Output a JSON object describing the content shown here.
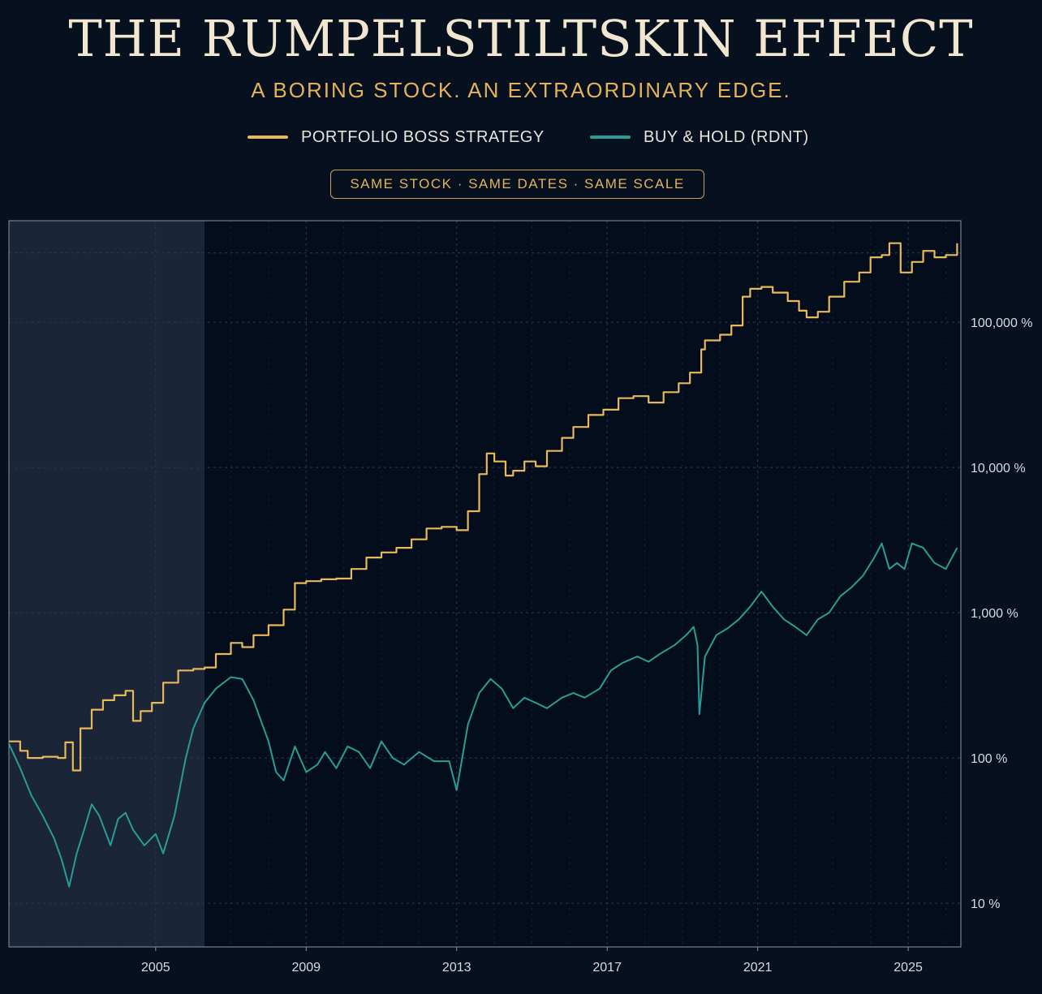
{
  "header": {
    "title": "THE RUMPELSTILTSKIN EFFECT",
    "subtitle": "A BORING STOCK. AN EXTRAORDINARY EDGE.",
    "badge": "SAME STOCK · SAME DATES · SAME SCALE"
  },
  "colors": {
    "background": "#06101f",
    "strategy": "#e8b85a",
    "buy_hold": "#2a9c97",
    "shade": "#1e2a3d"
  },
  "chart_data": {
    "type": "line",
    "title": "",
    "xlabel": "",
    "ylabel": "",
    "y_scale": "log",
    "ylim": [
      5,
      500000
    ],
    "xlim": [
      2001.1,
      2026.4
    ],
    "x_ticks": [
      2005,
      2009,
      2013,
      2017,
      2021,
      2025
    ],
    "x_tick_labels": [
      "2005",
      "2009",
      "2013",
      "2017",
      "2021",
      "2025"
    ],
    "y_ticks": [
      10,
      100,
      1000,
      10000,
      100000
    ],
    "y_tick_labels": [
      "10 %",
      "100 %",
      "1,000 %",
      "10,000 %",
      "100,000 %"
    ],
    "grid": true,
    "legend_position": "top-center",
    "shaded_region": [
      2001.1,
      2006.3
    ],
    "series": [
      {
        "name": "PORTFOLIO BOSS STRATEGY",
        "color": "#e8b85a",
        "x": [
          2001.1,
          2001.4,
          2001.6,
          2002.0,
          2002.4,
          2002.6,
          2002.8,
          2003.0,
          2003.3,
          2003.6,
          2003.9,
          2004.2,
          2004.4,
          2004.6,
          2004.9,
          2005.2,
          2005.6,
          2006.0,
          2006.3,
          2006.6,
          2007.0,
          2007.3,
          2007.6,
          2008.0,
          2008.4,
          2008.7,
          2009.0,
          2009.4,
          2009.8,
          2010.2,
          2010.6,
          2011.0,
          2011.4,
          2011.8,
          2012.2,
          2012.6,
          2013.0,
          2013.3,
          2013.6,
          2013.8,
          2014.0,
          2014.3,
          2014.5,
          2014.8,
          2015.1,
          2015.4,
          2015.8,
          2016.1,
          2016.5,
          2016.9,
          2017.3,
          2017.7,
          2018.1,
          2018.5,
          2018.9,
          2019.2,
          2019.5,
          2019.6,
          2020.0,
          2020.3,
          2020.6,
          2020.8,
          2021.1,
          2021.4,
          2021.8,
          2022.1,
          2022.3,
          2022.6,
          2022.9,
          2023.3,
          2023.7,
          2024.0,
          2024.3,
          2024.5,
          2024.8,
          2025.1,
          2025.4,
          2025.7,
          2026.0,
          2026.3
        ],
        "y": [
          130,
          112,
          100,
          102,
          100,
          128,
          82,
          160,
          215,
          250,
          270,
          290,
          180,
          210,
          240,
          330,
          400,
          410,
          420,
          520,
          620,
          580,
          700,
          820,
          1050,
          1600,
          1650,
          1700,
          1720,
          2000,
          2400,
          2600,
          2800,
          3200,
          3800,
          3900,
          3700,
          5000,
          9000,
          12500,
          11000,
          8800,
          9500,
          11000,
          10200,
          13000,
          16000,
          19000,
          23000,
          25000,
          30000,
          31000,
          28000,
          33000,
          38000,
          45000,
          65000,
          75000,
          82000,
          95000,
          150000,
          170000,
          175000,
          160000,
          140000,
          120000,
          108000,
          118000,
          150000,
          190000,
          220000,
          280000,
          290000,
          350000,
          220000,
          260000,
          310000,
          280000,
          290000,
          350000
        ]
      },
      {
        "name": "BUY & HOLD (RDNT)",
        "color": "#2a9c97",
        "x": [
          2001.1,
          2001.4,
          2001.7,
          2002.0,
          2002.3,
          2002.5,
          2002.7,
          2002.9,
          2003.1,
          2003.3,
          2003.5,
          2003.8,
          2004.0,
          2004.2,
          2004.4,
          2004.7,
          2005.0,
          2005.2,
          2005.5,
          2005.8,
          2006.0,
          2006.3,
          2006.6,
          2007.0,
          2007.3,
          2007.6,
          2007.8,
          2008.0,
          2008.2,
          2008.4,
          2008.7,
          2009.0,
          2009.3,
          2009.5,
          2009.8,
          2010.1,
          2010.4,
          2010.7,
          2011.0,
          2011.3,
          2011.6,
          2012.0,
          2012.4,
          2012.8,
          2013.0,
          2013.1,
          2013.3,
          2013.6,
          2013.9,
          2014.2,
          2014.5,
          2014.8,
          2015.1,
          2015.4,
          2015.8,
          2016.1,
          2016.4,
          2016.8,
          2017.1,
          2017.4,
          2017.8,
          2018.1,
          2018.4,
          2018.8,
          2019.1,
          2019.3,
          2019.4,
          2019.45,
          2019.6,
          2019.9,
          2020.2,
          2020.5,
          2020.8,
          2021.1,
          2021.4,
          2021.7,
          2022.0,
          2022.3,
          2022.6,
          2022.9,
          2023.2,
          2023.5,
          2023.8,
          2024.1,
          2024.3,
          2024.5,
          2024.7,
          2024.9,
          2025.1,
          2025.4,
          2025.7,
          2026.0,
          2026.3
        ],
        "y": [
          125,
          85,
          55,
          40,
          28,
          20,
          13,
          22,
          32,
          48,
          40,
          25,
          38,
          42,
          32,
          25,
          30,
          22,
          40,
          100,
          160,
          240,
          300,
          360,
          350,
          250,
          180,
          130,
          80,
          70,
          120,
          80,
          90,
          110,
          85,
          120,
          110,
          85,
          130,
          100,
          90,
          110,
          95,
          95,
          60,
          85,
          170,
          280,
          350,
          300,
          220,
          260,
          240,
          220,
          260,
          280,
          260,
          300,
          400,
          450,
          500,
          460,
          520,
          600,
          700,
          800,
          600,
          200,
          500,
          700,
          780,
          900,
          1100,
          1400,
          1100,
          900,
          800,
          700,
          900,
          1000,
          1300,
          1500,
          1800,
          2400,
          3000,
          2000,
          2200,
          2000,
          3000,
          2800,
          2200,
          2000,
          2800
        ]
      }
    ]
  }
}
